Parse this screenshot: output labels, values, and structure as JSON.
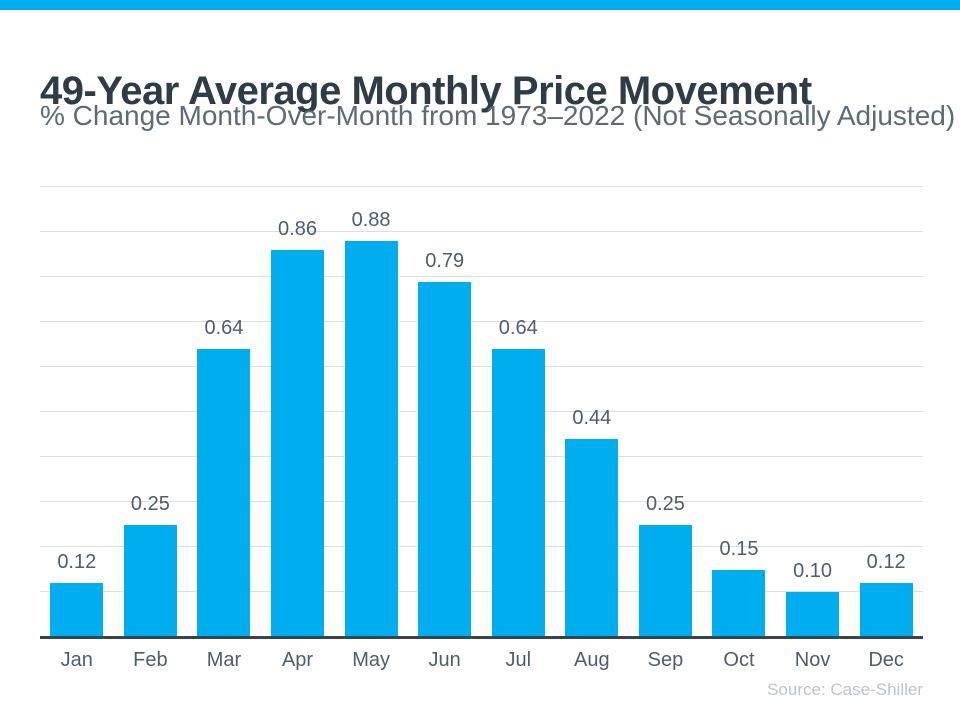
{
  "colors": {
    "accent_bar": "#00AEEF",
    "bar_fill": "#00AEEF",
    "title_text": "#2F3C46",
    "subtitle_text": "#5C6B74",
    "label_text": "#4E5D6C",
    "gridline": "#DCDEE0",
    "axis_line": "#39434C",
    "source_text": "#BDC3C9"
  },
  "chart_data": {
    "type": "bar",
    "title": "49-Year Average Monthly Price Movement",
    "subtitle": "% Change Month-Over-Month from 1973–2022 (Not Seasonally Adjusted)",
    "source": "Source: Case-Shiller",
    "categories": [
      "Jan",
      "Feb",
      "Mar",
      "Apr",
      "May",
      "Jun",
      "Jul",
      "Aug",
      "Sep",
      "Oct",
      "Nov",
      "Dec"
    ],
    "values": [
      0.12,
      0.25,
      0.64,
      0.86,
      0.88,
      0.79,
      0.64,
      0.44,
      0.25,
      0.15,
      0.1,
      0.12
    ],
    "xlabel": "",
    "ylabel": "",
    "ylim": [
      0,
      1.0
    ],
    "gridline_step": 0.1,
    "grid": true,
    "legend": false,
    "data_labels": true,
    "data_label_format": "0.00"
  }
}
